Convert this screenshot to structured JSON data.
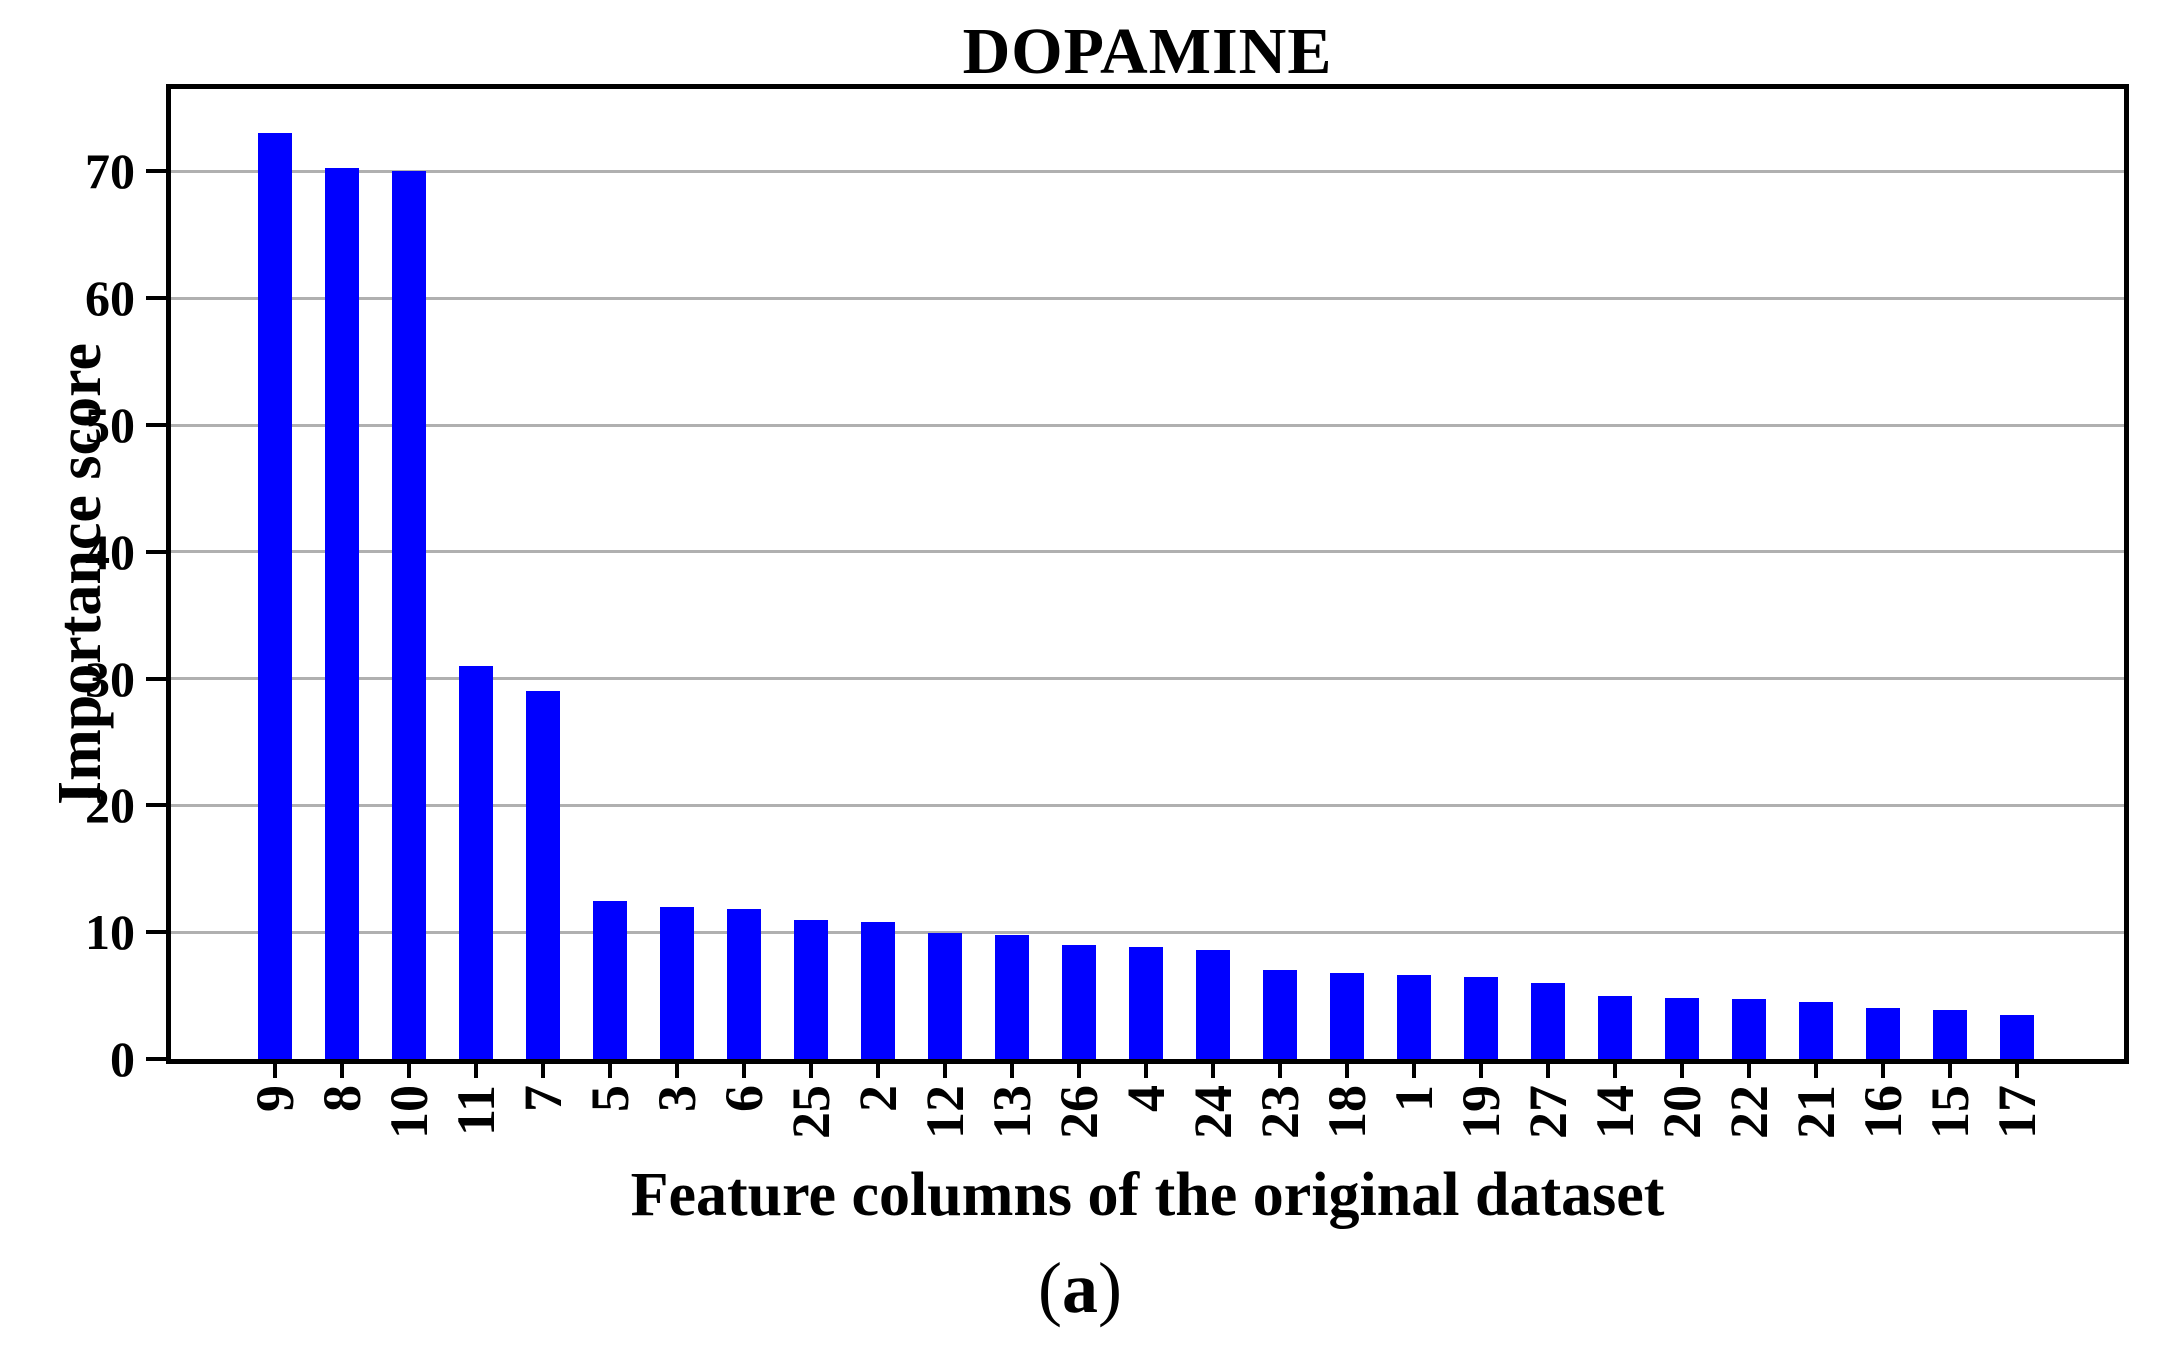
{
  "figure": {
    "caption_open": "(",
    "caption_letter": "a",
    "caption_close": ")"
  },
  "chart_data": {
    "type": "bar",
    "title": "DOPAMINE",
    "xlabel": "Feature columns of the original dataset",
    "ylabel": "Importance score",
    "categories": [
      "9",
      "8",
      "10",
      "11",
      "7",
      "5",
      "3",
      "6",
      "25",
      "2",
      "12",
      "13",
      "26",
      "4",
      "24",
      "23",
      "18",
      "1",
      "19",
      "27",
      "14",
      "20",
      "22",
      "21",
      "16",
      "15",
      "17"
    ],
    "values": [
      73,
      70.3,
      70,
      31,
      29,
      12.5,
      12,
      11.8,
      11,
      10.8,
      9.9,
      9.8,
      9,
      8.8,
      8.6,
      7,
      6.8,
      6.6,
      6.5,
      6,
      5,
      4.8,
      4.7,
      4.5,
      4,
      3.9,
      3.5
    ],
    "yticks": [
      0,
      10,
      20,
      30,
      40,
      50,
      60,
      70
    ],
    "ylim": [
      0,
      76.5
    ],
    "grid": "horizontal-only",
    "legend": "none",
    "colors": {
      "bar": "#0000ff",
      "grid": "#b0b0b0",
      "axis": "#000000",
      "text": "#000000",
      "background": "#ffffff"
    }
  }
}
